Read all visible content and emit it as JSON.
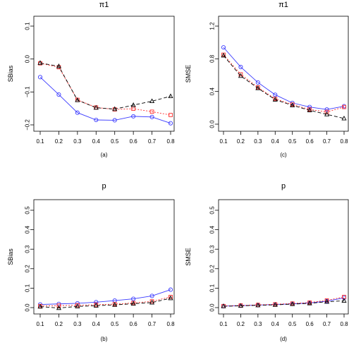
{
  "chart_data": [
    {
      "type": "line",
      "panel": "top-left",
      "title": "π1",
      "ylabel": "SBias",
      "caption": "(a)",
      "x": [
        0.1,
        0.2,
        0.3,
        0.4,
        0.5,
        0.6,
        0.7,
        0.8
      ],
      "xticks": [
        "0.1",
        "0.2",
        "0.3",
        "0.4",
        "0.5",
        "0.6",
        "0.7",
        "0.8"
      ],
      "ylim": [
        -0.2,
        0.1
      ],
      "yticks": [
        -0.2,
        -0.1,
        0.0,
        0.1
      ],
      "ytick_labels": [
        "−0.2",
        "−0.1",
        "0.0",
        "0.1"
      ],
      "series": [
        {
          "marker": "circle",
          "color": "#3b3bff",
          "dash": "solid",
          "values": [
            -0.055,
            -0.108,
            -0.163,
            -0.185,
            -0.186,
            -0.174,
            -0.176,
            -0.195
          ]
        },
        {
          "marker": "square",
          "color": "#ff2a2a",
          "dash": "dotted",
          "values": [
            -0.013,
            -0.025,
            -0.124,
            -0.147,
            -0.153,
            -0.151,
            -0.16,
            -0.17
          ]
        },
        {
          "marker": "triangle",
          "color": "#000000",
          "dash": "dashed",
          "values": [
            -0.012,
            -0.022,
            -0.125,
            -0.148,
            -0.152,
            -0.14,
            -0.128,
            -0.113
          ]
        }
      ]
    },
    {
      "type": "line",
      "panel": "top-right",
      "title": "π1",
      "ylabel": "SMSE",
      "caption": "(c)",
      "x": [
        0.1,
        0.2,
        0.3,
        0.4,
        0.5,
        0.6,
        0.7,
        0.8
      ],
      "xticks": [
        "0.1",
        "0.2",
        "0.3",
        "0.4",
        "0.5",
        "0.6",
        "0.7",
        "0.8"
      ],
      "ylim": [
        0.0,
        1.2
      ],
      "yticks": [
        0.0,
        0.4,
        0.8,
        1.2
      ],
      "ytick_labels": [
        "0.0",
        "0.4",
        "0.8",
        "1.2"
      ],
      "series": [
        {
          "marker": "circle",
          "color": "#3b3bff",
          "dash": "solid",
          "values": [
            0.94,
            0.7,
            0.51,
            0.36,
            0.26,
            0.21,
            0.18,
            0.22
          ]
        },
        {
          "marker": "square",
          "color": "#ff2a2a",
          "dash": "dotted",
          "values": [
            0.85,
            0.61,
            0.45,
            0.31,
            0.24,
            0.18,
            0.15,
            0.21
          ]
        },
        {
          "marker": "triangle",
          "color": "#000000",
          "dash": "dashed",
          "values": [
            0.84,
            0.59,
            0.44,
            0.3,
            0.23,
            0.17,
            0.12,
            0.07
          ]
        }
      ]
    },
    {
      "type": "line",
      "panel": "bottom-left",
      "title": "p",
      "ylabel": "SBias",
      "caption": "(b)",
      "x": [
        0.1,
        0.2,
        0.3,
        0.4,
        0.5,
        0.6,
        0.7,
        0.8
      ],
      "xticks": [
        "0.1",
        "0.2",
        "0.3",
        "0.4",
        "0.5",
        "0.6",
        "0.7",
        "0.8"
      ],
      "ylim": [
        0.0,
        0.5
      ],
      "yticks": [
        0.0,
        0.1,
        0.2,
        0.3,
        0.4,
        0.5
      ],
      "ytick_labels": [
        "0.0",
        "0.1",
        "0.2",
        "0.3",
        "0.4",
        "0.5"
      ],
      "series": [
        {
          "marker": "circle",
          "color": "#3b3bff",
          "dash": "solid",
          "values": [
            0.016,
            0.019,
            0.022,
            0.028,
            0.036,
            0.045,
            0.06,
            0.092
          ]
        },
        {
          "marker": "square",
          "color": "#ff2a2a",
          "dash": "dotted",
          "values": [
            0.008,
            0.01,
            0.012,
            0.015,
            0.018,
            0.024,
            0.032,
            0.055
          ]
        },
        {
          "marker": "triangle",
          "color": "#000000",
          "dash": "dashed",
          "values": [
            0.005,
            -0.002,
            0.006,
            0.01,
            0.014,
            0.02,
            0.026,
            0.048
          ]
        }
      ]
    },
    {
      "type": "line",
      "panel": "bottom-right",
      "title": "p",
      "ylabel": "SMSE",
      "caption": "(d)",
      "x": [
        0.1,
        0.2,
        0.3,
        0.4,
        0.5,
        0.6,
        0.7,
        0.8
      ],
      "xticks": [
        "0.1",
        "0.2",
        "0.3",
        "0.4",
        "0.5",
        "0.6",
        "0.7",
        "0.8"
      ],
      "ylim": [
        0.0,
        0.5
      ],
      "yticks": [
        0.0,
        0.1,
        0.2,
        0.3,
        0.4,
        0.5
      ],
      "ytick_labels": [
        "0.0",
        "0.1",
        "0.2",
        "0.3",
        "0.4",
        "0.5"
      ],
      "series": [
        {
          "marker": "circle",
          "color": "#3b3bff",
          "dash": "solid",
          "values": [
            0.008,
            0.01,
            0.013,
            0.016,
            0.019,
            0.024,
            0.033,
            0.05
          ]
        },
        {
          "marker": "square",
          "color": "#ff2a2a",
          "dash": "dotted",
          "values": [
            0.008,
            0.011,
            0.014,
            0.017,
            0.021,
            0.026,
            0.037,
            0.055
          ]
        },
        {
          "marker": "triangle",
          "color": "#000000",
          "dash": "dashed",
          "values": [
            0.007,
            0.009,
            0.012,
            0.014,
            0.018,
            0.022,
            0.03,
            0.035
          ]
        }
      ]
    }
  ]
}
